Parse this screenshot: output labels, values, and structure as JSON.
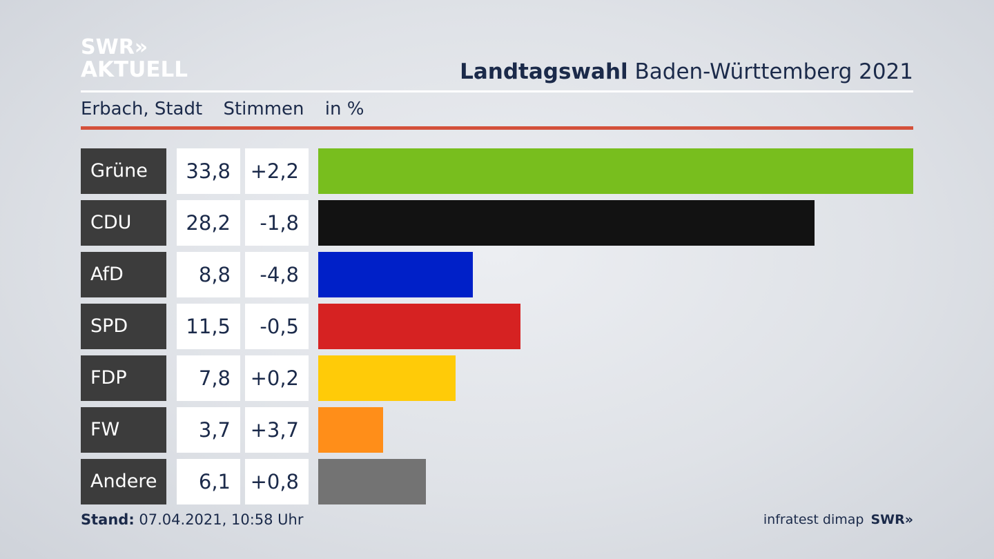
{
  "brand": {
    "logo_line1": "SWR»",
    "logo_line2": "AKTUELL"
  },
  "header": {
    "title_bold": "Landtagswahl",
    "title_rest": " Baden-Württemberg 2021"
  },
  "subheader": {
    "location": "Erbach, Stadt",
    "column_votes": "Stimmen",
    "unit": "in %"
  },
  "colors": {
    "accent_rule": "#d4503a"
  },
  "chart_data": {
    "type": "bar",
    "orientation": "horizontal",
    "unit": "%",
    "xlim": [
      0,
      33.8
    ],
    "categories": [
      "Grüne",
      "CDU",
      "AfD",
      "SPD",
      "FDP",
      "FW",
      "Andere"
    ],
    "values": [
      33.8,
      28.2,
      8.8,
      11.5,
      7.8,
      3.7,
      6.1
    ],
    "value_labels": [
      "33,8",
      "28,2",
      "8,8",
      "11,5",
      "7,8",
      "3,7",
      "6,1"
    ],
    "change_labels": [
      "+2,2",
      "-1,8",
      "-4,8",
      "-0,5",
      "+0,2",
      "+3,7",
      "+0,8"
    ],
    "colors": [
      "#78be1e",
      "#121212",
      "#0020c8",
      "#d62222",
      "#ffcb08",
      "#ff8e19",
      "#737373"
    ]
  },
  "footer": {
    "stand_label": "Stand:",
    "stand_value": " 07.04.2021, 10:58 Uhr",
    "source": "infratest dimap",
    "source_brand": "SWR»"
  }
}
